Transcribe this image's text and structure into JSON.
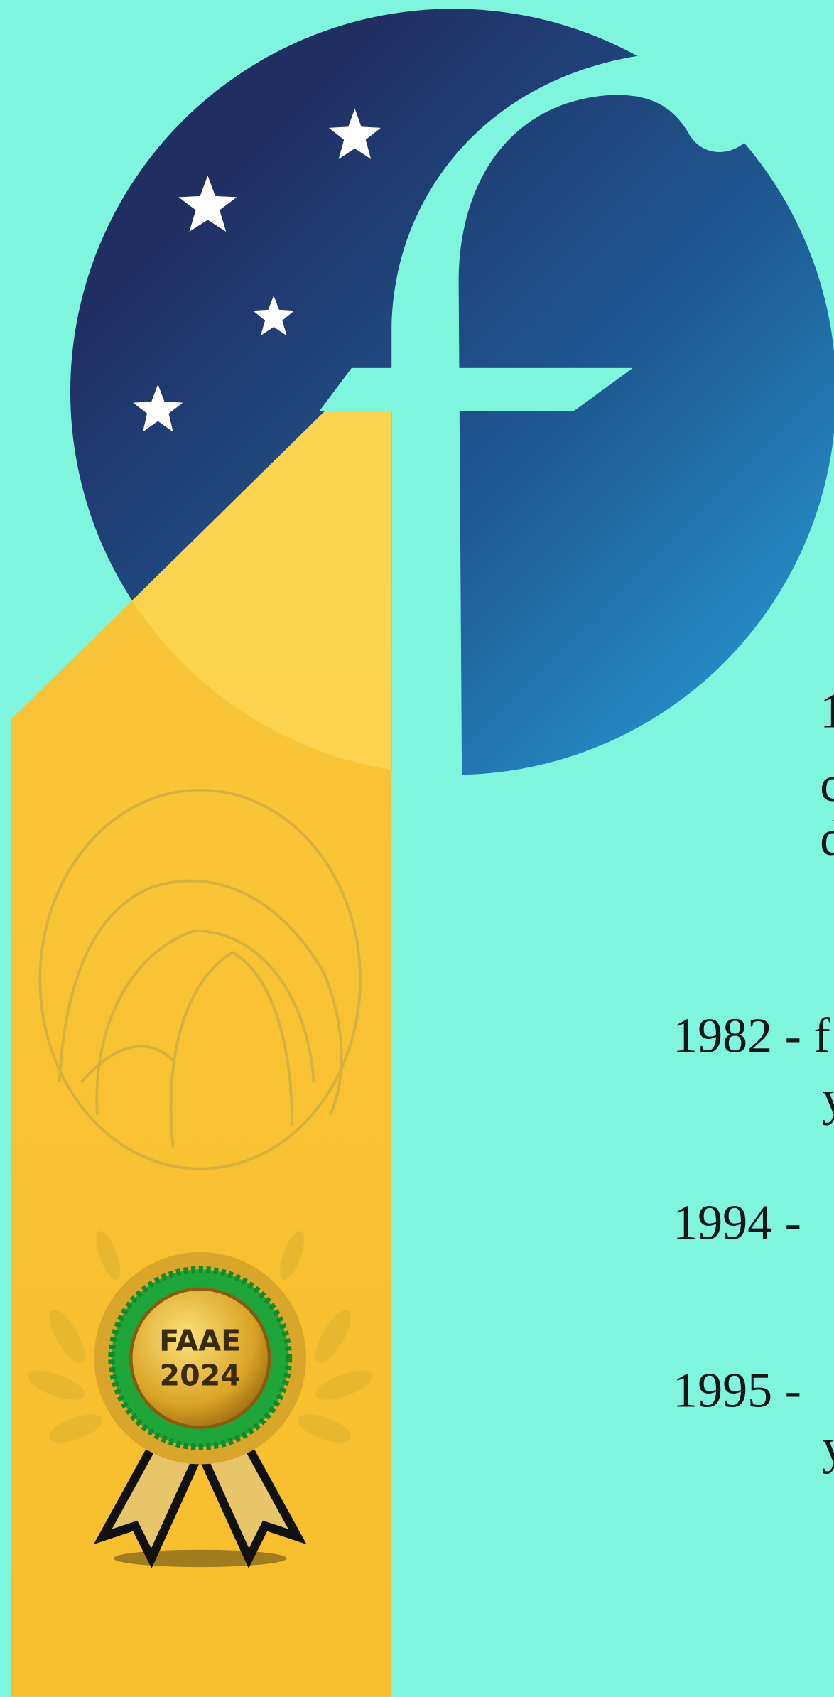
{
  "badge": {
    "line1": "FAAE",
    "line2": "2024"
  },
  "intro": {
    "lines": [
      "19",
      "co",
      "de"
    ]
  },
  "timeline": [
    {
      "year": "1982 - f",
      "next": "y"
    },
    {
      "year": "1994 -"
    },
    {
      "year": "1995 -",
      "next": "y"
    }
  ]
}
